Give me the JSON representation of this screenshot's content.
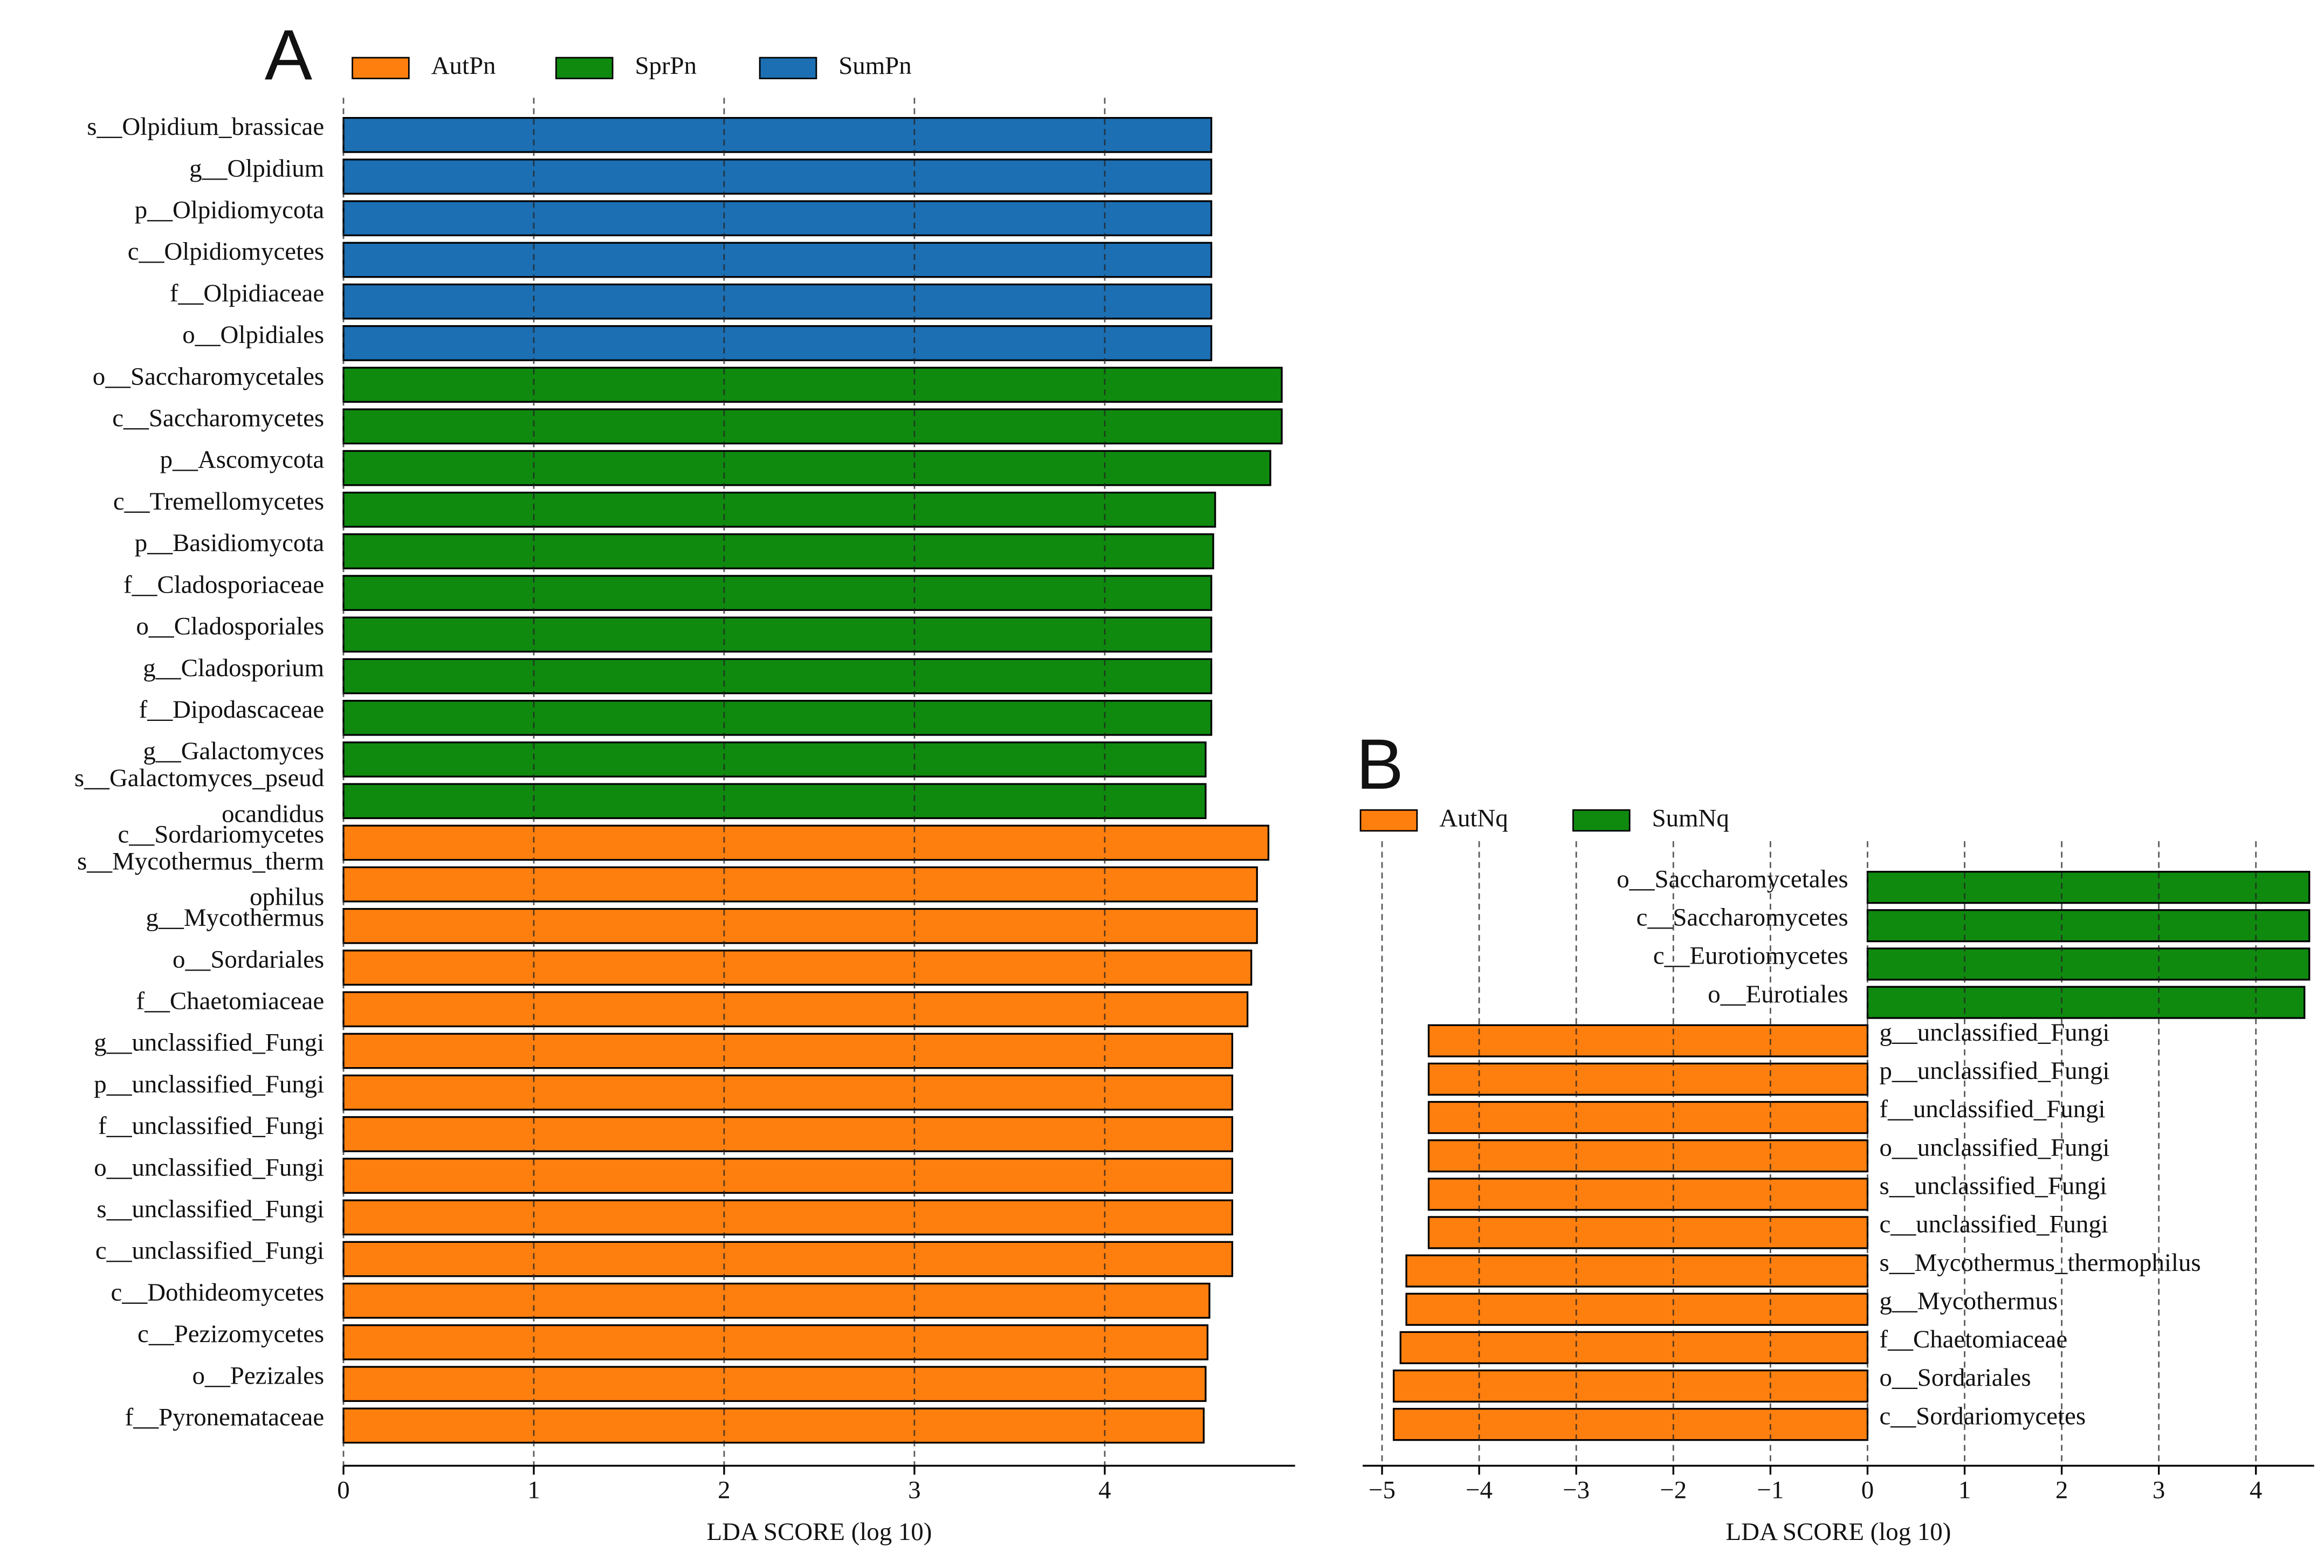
{
  "chart_data": [
    {
      "type": "bar",
      "panel": "A",
      "x_label": "LDA SCORE (log 10)",
      "xlim": [
        0,
        5
      ],
      "xticks": [
        0,
        1,
        2,
        3,
        4
      ],
      "grid": true,
      "series": [
        {
          "name": "AutPn",
          "color": "#ff7f0e",
          "categories": [
            "c__Sordariomycetes",
            [
              "s__Mycothermus_therm",
              "ophilus"
            ],
            "g__Mycothermus",
            "o__Sordariales",
            "f__Chaetomiaceae",
            "g__unclassified_Fungi",
            "p__unclassified_Fungi",
            "f__unclassified_Fungi",
            "o__unclassified_Fungi",
            "s__unclassified_Fungi",
            "c__unclassified_Fungi",
            "c__Dothideomycetes",
            "c__Pezizomycetes",
            "o__Pezizales",
            "f__Pyronemataceae"
          ],
          "values": [
            4.86,
            4.8,
            4.8,
            4.77,
            4.75,
            4.67,
            4.67,
            4.67,
            4.67,
            4.67,
            4.67,
            4.55,
            4.54,
            4.53,
            4.52
          ]
        },
        {
          "name": "SprPn",
          "color": "#0f8a0f",
          "categories": [
            "o__Saccharomycetales",
            "c__Saccharomycetes",
            "p__Ascomycota",
            "c__Tremellomycetes",
            "p__Basidiomycota",
            "f__Cladosporiaceae",
            "o__Cladosporiales",
            "g__Cladosporium",
            "f__Dipodascaceae",
            "g__Galactomyces",
            [
              "s__Galactomyces_pseud",
              "ocandidus"
            ]
          ],
          "values": [
            4.93,
            4.93,
            4.87,
            4.58,
            4.57,
            4.56,
            4.56,
            4.56,
            4.56,
            4.53,
            4.53
          ]
        },
        {
          "name": "SumPn",
          "color": "#1c6fb2",
          "categories": [
            "s__Olpidium_brassicae",
            "g__Olpidium",
            "p__Olpidiomycota",
            "c__Olpidiomycetes",
            "f__Olpidiaceae",
            "o__Olpidiales"
          ],
          "values": [
            4.56,
            4.56,
            4.56,
            4.56,
            4.56,
            4.56
          ]
        }
      ]
    },
    {
      "type": "bar",
      "panel": "B",
      "x_label": "LDA SCORE (log 10)",
      "xlim": [
        -5.2,
        4.6
      ],
      "xticks": [
        {
          "value": -5,
          "label": "−5"
        },
        {
          "value": -4,
          "label": "−4"
        },
        {
          "value": -3,
          "label": "−3"
        },
        {
          "value": -2,
          "label": "−2"
        },
        {
          "value": -1,
          "label": "−1"
        },
        0,
        1,
        2,
        3,
        4
      ],
      "grid": true,
      "series": [
        {
          "name": "AutNq",
          "color": "#ff7f0e",
          "categories": [
            "g__unclassified_Fungi",
            "p__unclassified_Fungi",
            "f__unclassified_Fungi",
            "o__unclassified_Fungi",
            "s__unclassified_Fungi",
            "c__unclassified_Fungi",
            "s__Mycothermus_thermophilus",
            "g__Mycothermus",
            "f__Chaetomiaceae",
            "o__Sordariales",
            "c__Sordariomycetes"
          ],
          "values": [
            -4.52,
            -4.52,
            -4.52,
            -4.52,
            -4.52,
            -4.52,
            -4.75,
            -4.75,
            -4.81,
            -4.88,
            -4.88
          ]
        },
        {
          "name": "SumNq",
          "color": "#0f8a0f",
          "categories": [
            "o__Saccharomycetales",
            "c__Saccharomycetes",
            "c__Eurotiomycetes",
            "o__Eurotiales"
          ],
          "values": [
            4.55,
            4.55,
            4.55,
            4.5
          ]
        }
      ]
    }
  ]
}
